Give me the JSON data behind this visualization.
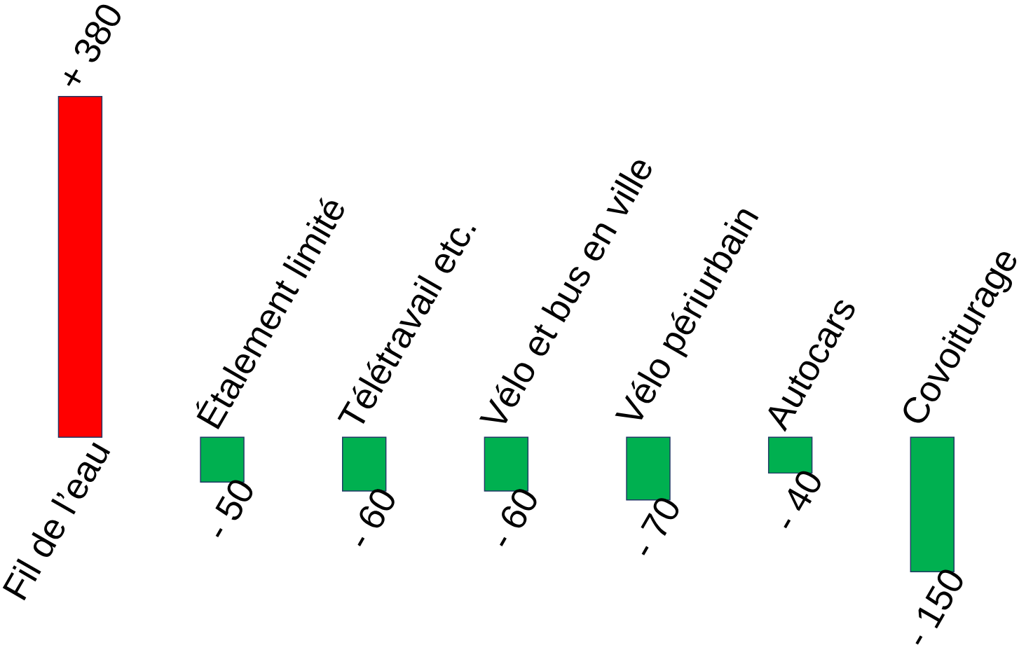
{
  "chart_data": {
    "type": "bar",
    "categories": [
      "Fil de l’eau",
      "Étalement limité",
      "Télétravail etc.",
      "Vélo et bus en ville",
      "Vélo périurbain",
      "Autocars",
      "Covoiturage"
    ],
    "values": [
      380,
      -50,
      -60,
      -60,
      -70,
      -40,
      -150
    ],
    "colors": [
      "#ff0000",
      "#00b050",
      "#00b050",
      "#00b050",
      "#00b050",
      "#00b050",
      "#00b050"
    ],
    "value_labels": [
      "+ 380",
      "- 50",
      "- 60",
      "- 60",
      "- 70",
      "- 40",
      "- 150"
    ]
  }
}
